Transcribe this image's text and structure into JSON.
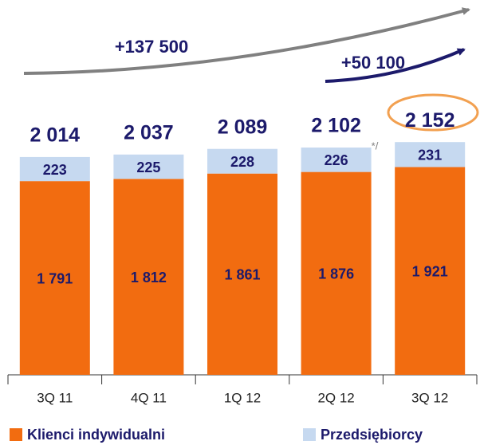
{
  "chart_data": {
    "type": "stacked_bar",
    "categories": [
      "3Q 11",
      "4Q 11",
      "1Q 12",
      "2Q 12",
      "3Q 12"
    ],
    "series": [
      {
        "name": "Klienci indywidualni",
        "color": "#f26c10",
        "values": [
          1791,
          1812,
          1861,
          1876,
          1921
        ],
        "value_labels": [
          "1 791",
          "1 812",
          "1 861",
          "1 876",
          "1 921"
        ]
      },
      {
        "name": "Przedsiębiorcy",
        "color": "#c6d9f0",
        "values": [
          223,
          225,
          228,
          226,
          231
        ]
      }
    ],
    "totals": [
      2014,
      2037,
      2089,
      2102,
      2152
    ],
    "total_labels": [
      "2 014",
      "2 037",
      "2 089",
      "2 102",
      "2 152"
    ],
    "annotations": [
      "+137 500",
      "+50 100",
      "*/"
    ],
    "ylim": [
      0,
      2500
    ]
  }
}
